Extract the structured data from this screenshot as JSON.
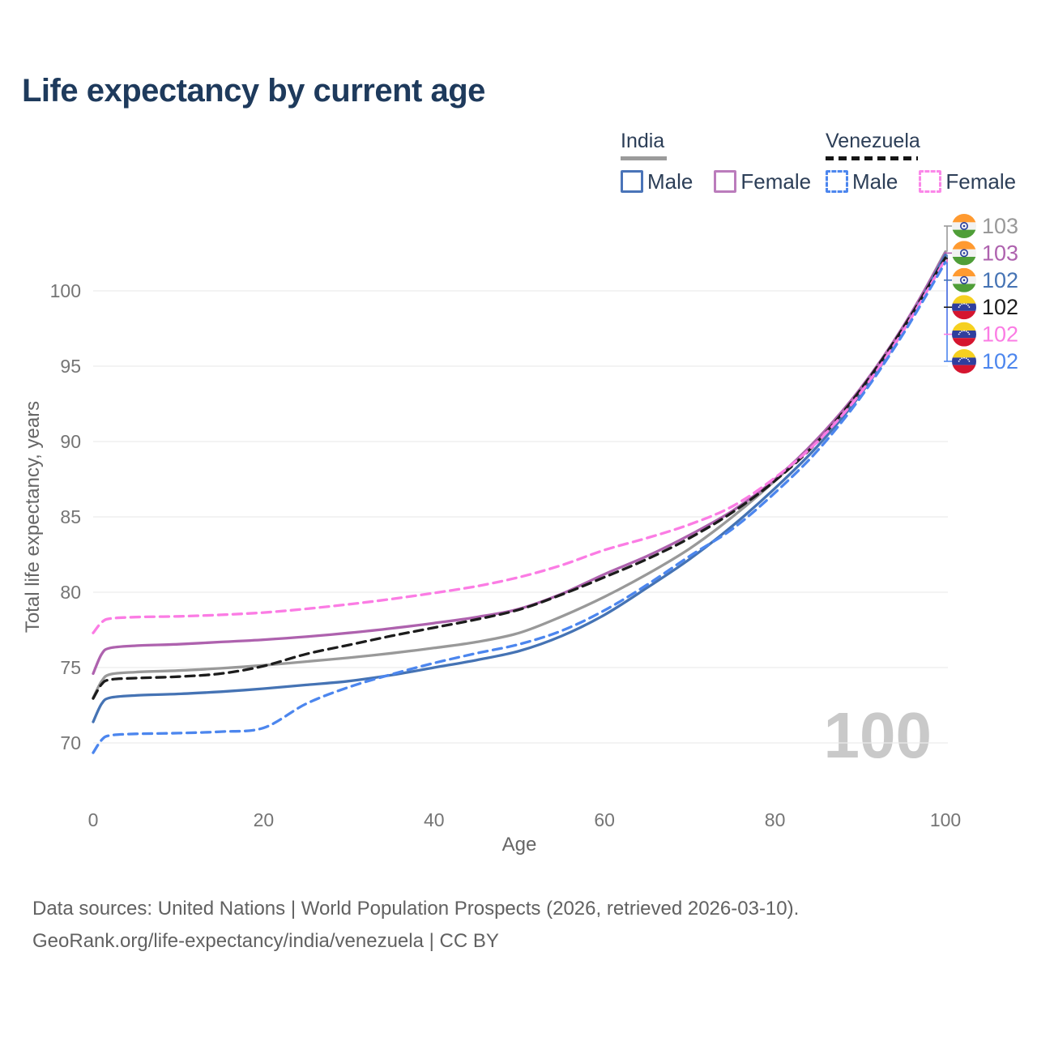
{
  "title": "Life expectancy by current age",
  "watermark": "100",
  "legend": {
    "groups": [
      {
        "label": "India",
        "line_style": "solid",
        "rule_color": "#9b9b9b",
        "items": [
          {
            "label": "Male",
            "color": "#4a74b8"
          },
          {
            "label": "Female",
            "color": "#bb7cbc"
          }
        ]
      },
      {
        "label": "Venezuela",
        "line_style": "dashed",
        "rule_color": "#151515",
        "items": [
          {
            "label": "Male",
            "color": "#4c86ee"
          },
          {
            "label": "Female",
            "color": "#fb87e9"
          }
        ]
      }
    ]
  },
  "footer": {
    "line1": "Data sources: United Nations | World Population Prospects (2026, retrieved 2026-03-10).",
    "line2": "GeoRank.org/life-expectancy/india/venezuela | CC BY"
  },
  "chart_data": {
    "type": "line",
    "title": "Life expectancy by current age",
    "xlabel": "Age",
    "ylabel": "Total life expectancy, years",
    "xlim": [
      0,
      100
    ],
    "ylim": [
      69,
      103.5
    ],
    "xticks": [
      0,
      20,
      40,
      60,
      80,
      100
    ],
    "yticks": [
      70,
      75,
      80,
      85,
      90,
      95,
      100
    ],
    "grid": "horizontal-only",
    "legend_position": "top-right",
    "x": [
      0,
      1,
      2,
      5,
      10,
      15,
      20,
      25,
      30,
      35,
      40,
      45,
      50,
      55,
      60,
      65,
      70,
      75,
      80,
      85,
      90,
      95,
      100
    ],
    "series": [
      {
        "name": "India",
        "sex": "total",
        "color": "#999999",
        "dashed": false,
        "flag": "india",
        "end_label": "103",
        "values": [
          73.0,
          74.1,
          74.55,
          74.7,
          74.8,
          74.95,
          75.15,
          75.4,
          75.65,
          75.95,
          76.3,
          76.7,
          77.3,
          78.4,
          79.7,
          81.2,
          82.9,
          85.0,
          87.4,
          90.1,
          93.4,
          97.5,
          102.6
        ]
      },
      {
        "name": "India Female",
        "sex": "female",
        "color": "#ae62ae",
        "dashed": false,
        "flag": "india",
        "end_label": "103",
        "values": [
          74.6,
          75.9,
          76.3,
          76.45,
          76.55,
          76.7,
          76.85,
          77.05,
          77.3,
          77.6,
          77.95,
          78.35,
          78.9,
          79.9,
          81.2,
          82.4,
          83.8,
          85.4,
          87.5,
          90.2,
          93.5,
          97.6,
          102.5
        ]
      },
      {
        "name": "India Male",
        "sex": "male",
        "color": "#4573b4",
        "dashed": false,
        "flag": "india",
        "end_label": "102",
        "values": [
          71.4,
          72.6,
          73.0,
          73.15,
          73.25,
          73.4,
          73.6,
          73.85,
          74.1,
          74.5,
          75.0,
          75.5,
          76.1,
          77.1,
          78.5,
          80.3,
          82.2,
          84.4,
          86.9,
          89.7,
          93.1,
          97.3,
          102.4
        ]
      },
      {
        "name": "Venezuela",
        "sex": "total",
        "color": "#1c1c1c",
        "dashed": true,
        "flag": "venezuela",
        "end_label": "102",
        "values": [
          72.95,
          73.9,
          74.2,
          74.3,
          74.4,
          74.6,
          75.1,
          75.9,
          76.5,
          77.1,
          77.65,
          78.2,
          78.85,
          79.85,
          81.0,
          82.2,
          83.6,
          85.3,
          87.4,
          90.0,
          93.4,
          97.5,
          102.2
        ]
      },
      {
        "name": "Venezuela Female",
        "sex": "female",
        "color": "#fb7ce4",
        "dashed": true,
        "flag": "venezuela",
        "end_label": "102",
        "values": [
          77.3,
          78.0,
          78.25,
          78.35,
          78.4,
          78.5,
          78.65,
          78.9,
          79.2,
          79.55,
          79.95,
          80.4,
          81.0,
          81.8,
          82.8,
          83.6,
          84.5,
          85.7,
          87.6,
          90.0,
          93.2,
          97.3,
          102.1
        ]
      },
      {
        "name": "Venezuela Male",
        "sex": "male",
        "color": "#4c86ee",
        "dashed": true,
        "flag": "venezuela",
        "end_label": "102",
        "values": [
          69.35,
          70.2,
          70.5,
          70.6,
          70.65,
          70.75,
          71.0,
          72.6,
          73.7,
          74.55,
          75.3,
          75.95,
          76.55,
          77.45,
          78.8,
          80.5,
          82.4,
          84.2,
          86.6,
          89.4,
          92.9,
          97.1,
          101.9
        ]
      }
    ]
  }
}
